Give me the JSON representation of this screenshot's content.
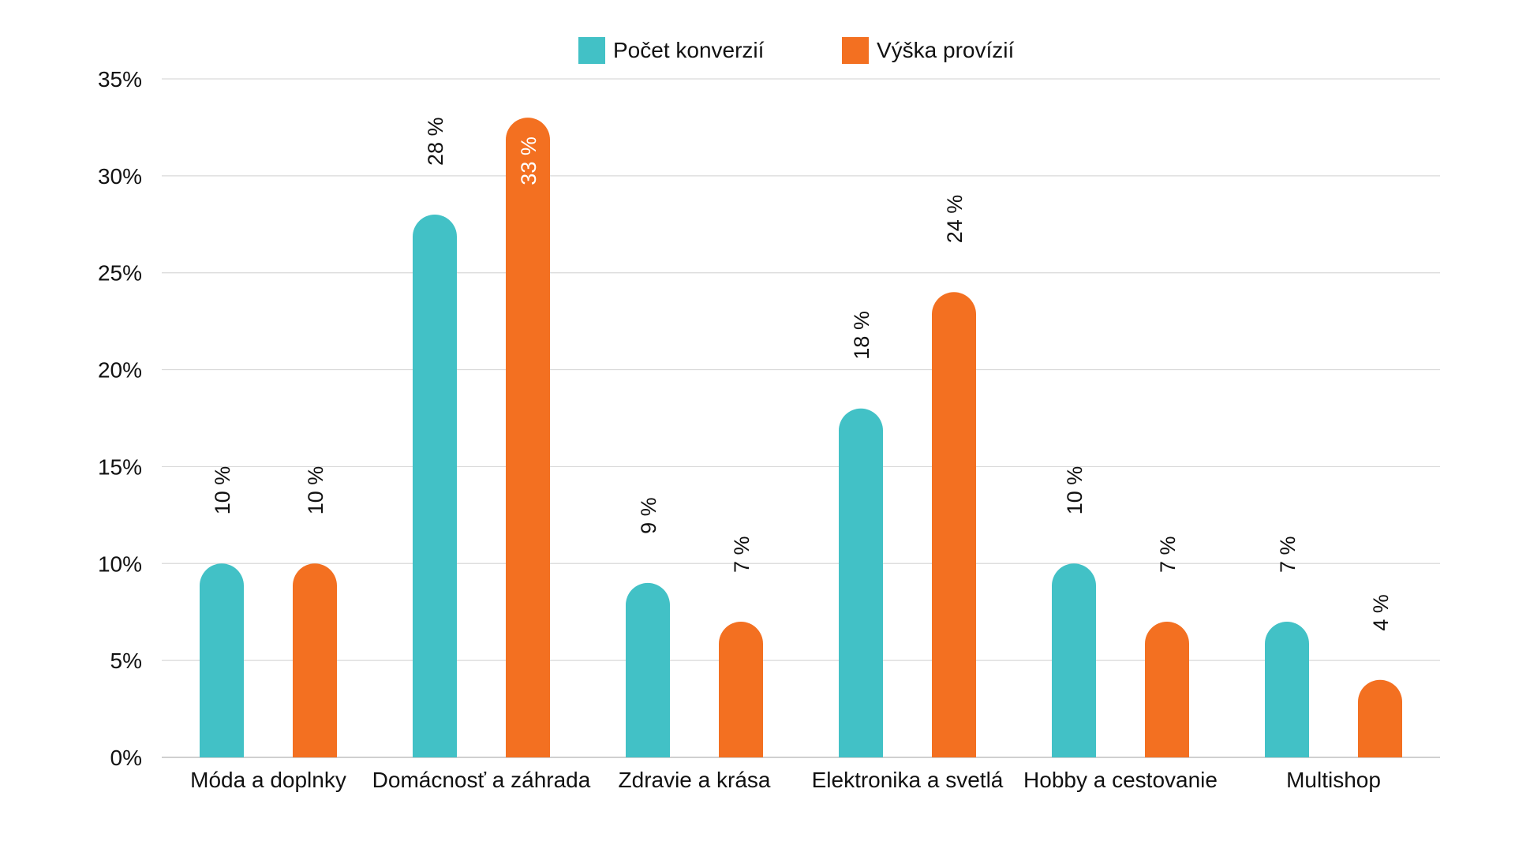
{
  "chart_data": {
    "type": "bar",
    "title": "",
    "xlabel": "",
    "ylabel": "",
    "ylim": [
      0,
      35
    ],
    "y_ticks": [
      "0%",
      "5%",
      "10%",
      "15%",
      "20%",
      "25%",
      "30%",
      "35%"
    ],
    "y_tick_values": [
      0,
      5,
      10,
      15,
      20,
      25,
      30,
      35
    ],
    "grid": true,
    "legend_position": "top-center",
    "categories": [
      "Móda a doplnky",
      "Domácnosť a záhrada",
      "Zdravie a krása",
      "Elektronika a svetlá",
      "Hobby a cestovanie",
      "Multishop"
    ],
    "series": [
      {
        "name": "Počet konverzií",
        "color": "#42C1C6",
        "values": [
          10,
          28,
          9,
          18,
          10,
          7
        ],
        "labels": [
          "10 %",
          "28 %",
          "9 %",
          "18 %",
          "10 %",
          "7 %"
        ]
      },
      {
        "name": "Výška provízií",
        "color": "#F37021",
        "values": [
          10,
          33,
          7,
          24,
          7,
          4
        ],
        "labels": [
          "10 %",
          "33 %",
          "7 %",
          "24 %",
          "7 %",
          "4 %"
        ]
      }
    ]
  }
}
